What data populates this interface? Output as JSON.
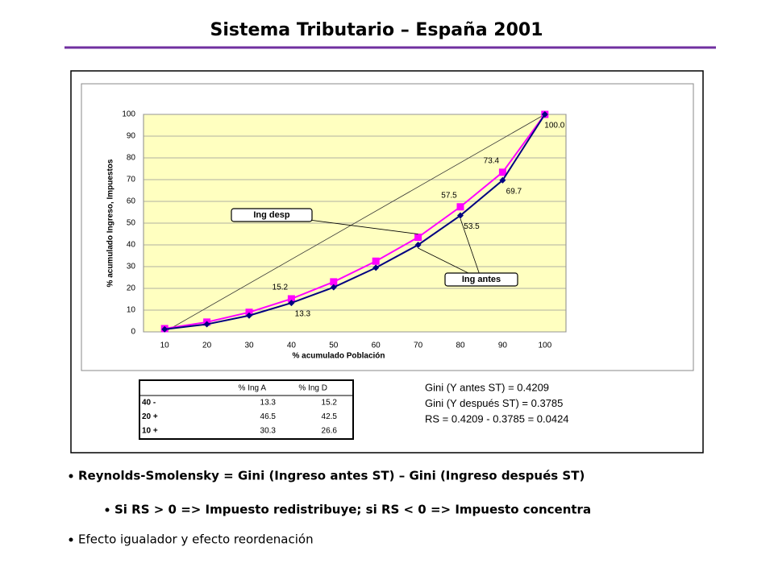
{
  "slide_title": "Sistema Tributario – España 2001",
  "chart_data": {
    "type": "line",
    "x_label": "% acumulado Población",
    "y_label": "% acumulado Ingreso, Impuestos",
    "categories": [
      10,
      20,
      30,
      40,
      50,
      60,
      70,
      80,
      90,
      100
    ],
    "ylim": [
      0,
      100
    ],
    "yticks": [
      0,
      10,
      20,
      30,
      40,
      50,
      60,
      70,
      80,
      90,
      100
    ],
    "grid": true,
    "series": [
      {
        "name": "Ing antes",
        "color": "#000080",
        "marker": "diamond",
        "values": [
          1.2,
          3.5,
          7.5,
          13.3,
          20.5,
          29.5,
          40,
          53.5,
          69.7,
          100
        ],
        "value_labels": [
          null,
          null,
          null,
          "13.3",
          null,
          null,
          null,
          "53.5",
          "69.7",
          null
        ]
      },
      {
        "name": "Ing desp",
        "color": "#ff00ff",
        "marker": "square",
        "values": [
          1.5,
          4.5,
          9,
          15.2,
          23,
          32.5,
          43.5,
          57.5,
          73.4,
          100
        ],
        "value_labels": [
          null,
          null,
          null,
          "15.2",
          null,
          null,
          null,
          "57.5",
          "73.4",
          "100.0"
        ]
      }
    ]
  },
  "table": {
    "columns": [
      "% Ing A",
      "% Ing D"
    ],
    "rows": [
      [
        "40 -",
        13.3,
        15.2
      ],
      [
        "20 +",
        46.5,
        42.5
      ],
      [
        "10 +",
        30.3,
        26.6
      ]
    ]
  },
  "gini_lines": [
    "Gini (Y antes ST) = 0.4209",
    "Gini (Y después ST) = 0.3785",
    "RS = 0.4209 - 0.3785 = 0.0424"
  ],
  "bullets": [
    "Reynolds-Smolensky  = Gini (Ingreso antes ST) – Gini (Ingreso después ST)",
    "Si RS > 0 => Impuesto redistribuye; si RS < 0 => Impuesto concentra",
    "Efecto igualador y efecto reordenación"
  ]
}
